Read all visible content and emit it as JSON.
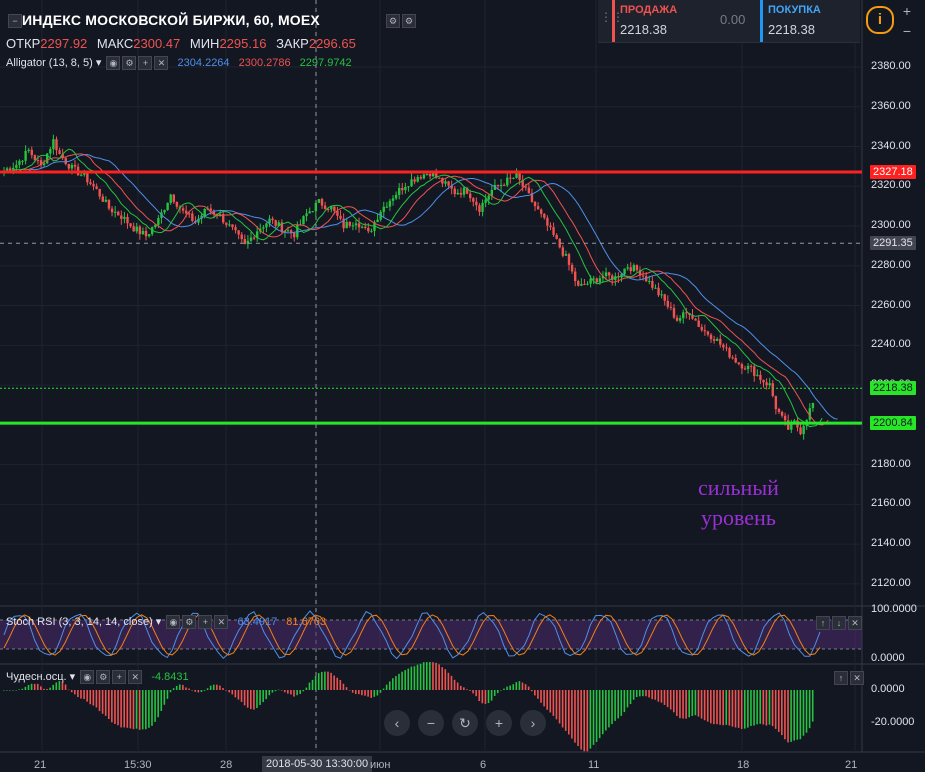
{
  "header": {
    "title": "ИНДЕКС МОСКОВСКОЙ БИРЖИ, 60, MOEX",
    "ohlc": [
      {
        "label": "ОТКР",
        "value": "2297.92"
      },
      {
        "label": "МАКС",
        "value": "2300.47"
      },
      {
        "label": "МИН",
        "value": "2295.16"
      },
      {
        "label": "ЗАКР",
        "value": "2296.65"
      }
    ],
    "indicator": {
      "name": "Alligator (13, 8, 5)",
      "v1": "2304.2264",
      "v2": "2300.2786",
      "v3": "2297.9742"
    }
  },
  "trade_panel": {
    "sell_label": "ПРОДАЖА",
    "sell_price": "2218.38",
    "spread": "0.00",
    "buy_label": "ПОКУПКА",
    "buy_price": "2218.38",
    "info_icon": "info-icon"
  },
  "annotation": {
    "line1": "сильный",
    "line2": "уровень"
  },
  "colors": {
    "up": "#26c240",
    "down": "#ef5350",
    "resistance": "#ff2020",
    "support": "#26e626",
    "accent": "#9b2fd6",
    "blue": "#4f8fe8"
  },
  "chart_data": [
    {
      "type": "candlestick",
      "title": "ИНДЕКС МОСКОВСКОЙ БИРЖИ, 60, MOEX",
      "ylim": [
        2110,
        2390
      ],
      "y_ticks": [
        "2380.00",
        "2360.00",
        "2340.00",
        "2320.00",
        "2300.00",
        "2280.00",
        "2260.00",
        "2240.00",
        "2220.00",
        "2200.00",
        "2180.00",
        "2160.00",
        "2140.00",
        "2120.00"
      ],
      "x_ticks": [
        "21",
        "15:30",
        "28",
        "2018-05-30 13:30:00",
        "июн",
        "6",
        "11",
        "18",
        "21"
      ],
      "close_path": [
        [
          0,
          2328
        ],
        [
          4,
          2331
        ],
        [
          8,
          2338
        ],
        [
          12,
          2330
        ],
        [
          16,
          2343
        ],
        [
          18,
          2336
        ],
        [
          22,
          2329
        ],
        [
          26,
          2325
        ],
        [
          30,
          2318
        ],
        [
          34,
          2309
        ],
        [
          38,
          2305
        ],
        [
          42,
          2299
        ],
        [
          46,
          2295
        ],
        [
          50,
          2303
        ],
        [
          54,
          2316
        ],
        [
          58,
          2307
        ],
        [
          62,
          2302
        ],
        [
          66,
          2309
        ],
        [
          70,
          2305
        ],
        [
          74,
          2298
        ],
        [
          78,
          2290
        ],
        [
          82,
          2298
        ],
        [
          86,
          2303
        ],
        [
          90,
          2299
        ],
        [
          94,
          2296
        ],
        [
          98,
          2306
        ],
        [
          102,
          2312
        ],
        [
          106,
          2309
        ],
        [
          110,
          2300
        ],
        [
          114,
          2303
        ],
        [
          118,
          2296
        ],
        [
          122,
          2308
        ],
        [
          126,
          2315
        ],
        [
          130,
          2321
        ],
        [
          134,
          2325
        ],
        [
          138,
          2327
        ],
        [
          142,
          2322
        ],
        [
          146,
          2317
        ],
        [
          150,
          2318
        ],
        [
          154,
          2309
        ],
        [
          158,
          2318
        ],
        [
          162,
          2322
        ],
        [
          166,
          2325
        ],
        [
          170,
          2315
        ],
        [
          174,
          2305
        ],
        [
          178,
          2295
        ],
        [
          182,
          2284
        ],
        [
          186,
          2269
        ],
        [
          190,
          2272
        ],
        [
          194,
          2275
        ],
        [
          198,
          2274
        ],
        [
          202,
          2280
        ],
        [
          206,
          2277
        ],
        [
          210,
          2270
        ],
        [
          214,
          2262
        ],
        [
          218,
          2253
        ],
        [
          222,
          2257
        ],
        [
          226,
          2248
        ],
        [
          230,
          2244
        ],
        [
          234,
          2237
        ],
        [
          238,
          2231
        ],
        [
          242,
          2228
        ],
        [
          246,
          2222
        ],
        [
          248,
          2220
        ],
        [
          250,
          2209
        ],
        [
          252,
          2203
        ],
        [
          254,
          2198
        ],
        [
          256,
          2201
        ],
        [
          258,
          2197
        ],
        [
          260,
          2204
        ],
        [
          262,
          2211
        ]
      ],
      "levels": [
        {
          "name": "resistance",
          "value": 2327.18,
          "label": "2327.18"
        },
        {
          "name": "pivot",
          "value": 2291.35,
          "label": "2291.35"
        },
        {
          "name": "current",
          "value": 2218.38,
          "label": "2218.38"
        },
        {
          "name": "support",
          "value": 2200.84,
          "label": "2200.84"
        }
      ]
    },
    {
      "type": "line",
      "title": "Stoch RSI (3, 3, 14, 14, close)",
      "values_shown": [
        "63.4917",
        "81.6763"
      ],
      "ylim": [
        0,
        100
      ],
      "y_ticks": [
        "100.0000",
        "0.0000"
      ]
    },
    {
      "type": "bar",
      "title": "Чудесн.осц.",
      "values_shown": [
        "-4.8431"
      ],
      "y_ticks": [
        "0.0000",
        "-20.0000"
      ]
    }
  ]
}
